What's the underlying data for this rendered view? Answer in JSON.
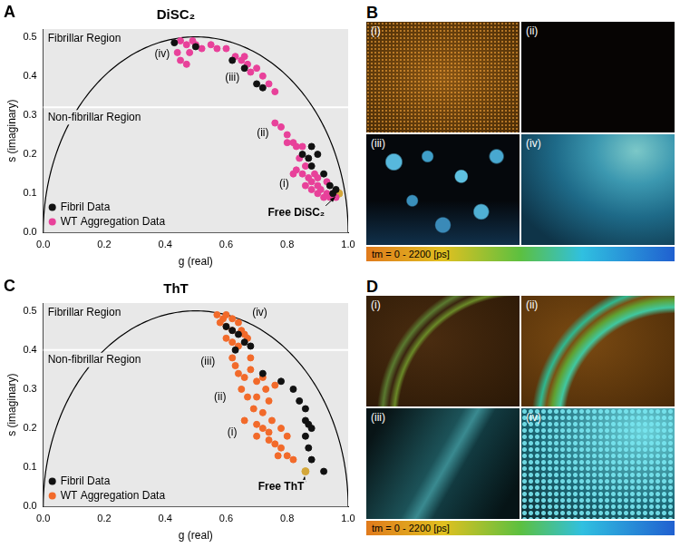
{
  "chart_data": [
    {
      "type": "scatter",
      "panel": "A",
      "title": "DiSC₂",
      "x_label": "g (real)",
      "y_label": "s (imaginary)",
      "xlim": [
        0,
        1
      ],
      "xticks": [
        {
          "value": 0,
          "label": "0.0"
        },
        {
          "value": 0.2,
          "label": "0.2"
        },
        {
          "value": 0.4,
          "label": "0.4"
        },
        {
          "value": 0.6,
          "label": "0.6"
        },
        {
          "value": 0.8,
          "label": "0.8"
        },
        {
          "value": 1,
          "label": "1.0"
        }
      ],
      "ylim": [
        0,
        0.52
      ],
      "yticks": [
        {
          "value": 0,
          "label": "0.0"
        },
        {
          "value": 0.1,
          "label": "0.1"
        },
        {
          "value": 0.2,
          "label": "0.2"
        },
        {
          "value": 0.3,
          "label": "0.3"
        },
        {
          "value": 0.4,
          "label": "0.4"
        },
        {
          "value": 0.5,
          "label": "0.5"
        }
      ],
      "grid": false,
      "legend": "lower left",
      "regions": [
        {
          "label": "Fibrillar Region",
          "from": 0.32,
          "to": 0.52
        },
        {
          "label": "Non-fibrillar Region",
          "from": 0,
          "to": 0.32
        }
      ],
      "series": [
        {
          "name": "Fibril Data",
          "color": "#111111",
          "values": [
            [
              0.43,
              0.485
            ],
            [
              0.5,
              0.475
            ],
            [
              0.62,
              0.44
            ],
            [
              0.66,
              0.42
            ],
            [
              0.7,
              0.38
            ],
            [
              0.72,
              0.37
            ],
            [
              0.85,
              0.2
            ],
            [
              0.87,
              0.19
            ],
            [
              0.88,
              0.17
            ],
            [
              0.88,
              0.22
            ],
            [
              0.9,
              0.2
            ],
            [
              0.92,
              0.15
            ],
            [
              0.94,
              0.12
            ],
            [
              0.95,
              0.1
            ],
            [
              0.96,
              0.11
            ]
          ]
        },
        {
          "name": "WT Aggregation Data",
          "color": "#e8419a",
          "values": [
            [
              0.45,
              0.49
            ],
            [
              0.47,
              0.48
            ],
            [
              0.48,
              0.46
            ],
            [
              0.49,
              0.49
            ],
            [
              0.5,
              0.48
            ],
            [
              0.52,
              0.47
            ],
            [
              0.44,
              0.46
            ],
            [
              0.45,
              0.44
            ],
            [
              0.47,
              0.43
            ],
            [
              0.55,
              0.48
            ],
            [
              0.57,
              0.47
            ],
            [
              0.6,
              0.47
            ],
            [
              0.63,
              0.45
            ],
            [
              0.65,
              0.44
            ],
            [
              0.67,
              0.43
            ],
            [
              0.68,
              0.41
            ],
            [
              0.7,
              0.42
            ],
            [
              0.72,
              0.4
            ],
            [
              0.74,
              0.38
            ],
            [
              0.76,
              0.36
            ],
            [
              0.66,
              0.45
            ],
            [
              0.76,
              0.28
            ],
            [
              0.78,
              0.27
            ],
            [
              0.8,
              0.25
            ],
            [
              0.8,
              0.23
            ],
            [
              0.82,
              0.23
            ],
            [
              0.83,
              0.22
            ],
            [
              0.85,
              0.22
            ],
            [
              0.84,
              0.19
            ],
            [
              0.86,
              0.17
            ],
            [
              0.83,
              0.16
            ],
            [
              0.85,
              0.15
            ],
            [
              0.87,
              0.14
            ],
            [
              0.88,
              0.13
            ],
            [
              0.9,
              0.12
            ],
            [
              0.88,
              0.11
            ],
            [
              0.9,
              0.1
            ],
            [
              0.91,
              0.11
            ],
            [
              0.92,
              0.09
            ],
            [
              0.93,
              0.1
            ],
            [
              0.94,
              0.09
            ],
            [
              0.95,
              0.1
            ],
            [
              0.96,
              0.09
            ],
            [
              0.89,
              0.15
            ],
            [
              0.86,
              0.12
            ],
            [
              0.9,
              0.14
            ],
            [
              0.93,
              0.13
            ],
            [
              0.82,
              0.15
            ]
          ]
        }
      ],
      "annotations": [
        {
          "text": "(i)",
          "x": 0.79,
          "y": 0.125
        },
        {
          "text": "(ii)",
          "x": 0.72,
          "y": 0.255
        },
        {
          "text": "(iii)",
          "x": 0.62,
          "y": 0.395
        },
        {
          "text": "(iv)",
          "x": 0.39,
          "y": 0.455
        },
        {
          "text": "Free DiSC₂",
          "x": 0.83,
          "y": 0.05,
          "point": [
            0.97,
            0.1
          ],
          "color": "#d4a73a"
        }
      ]
    },
    {
      "type": "scatter",
      "panel": "C",
      "title": "ThT",
      "x_label": "g (real)",
      "y_label": "s (imaginary)",
      "xlim": [
        0,
        1
      ],
      "xticks": [
        {
          "value": 0,
          "label": "0.0"
        },
        {
          "value": 0.2,
          "label": "0.2"
        },
        {
          "value": 0.4,
          "label": "0.4"
        },
        {
          "value": 0.6,
          "label": "0.6"
        },
        {
          "value": 0.8,
          "label": "0.8"
        },
        {
          "value": 1,
          "label": "1.0"
        }
      ],
      "ylim": [
        0,
        0.52
      ],
      "yticks": [
        {
          "value": 0,
          "label": "0.0"
        },
        {
          "value": 0.1,
          "label": "0.1"
        },
        {
          "value": 0.2,
          "label": "0.2"
        },
        {
          "value": 0.3,
          "label": "0.3"
        },
        {
          "value": 0.4,
          "label": "0.4"
        },
        {
          "value": 0.5,
          "label": "0.5"
        }
      ],
      "grid": false,
      "legend": "lower left",
      "regions": [
        {
          "label": "Fibrillar Region",
          "from": 0.4,
          "to": 0.52
        },
        {
          "label": "Non-fibrillar Region",
          "from": 0,
          "to": 0.4
        }
      ],
      "series": [
        {
          "name": "Fibril Data",
          "color": "#111111",
          "values": [
            [
              0.6,
              0.46
            ],
            [
              0.62,
              0.45
            ],
            [
              0.64,
              0.44
            ],
            [
              0.66,
              0.42
            ],
            [
              0.63,
              0.4
            ],
            [
              0.68,
              0.41
            ],
            [
              0.72,
              0.34
            ],
            [
              0.78,
              0.32
            ],
            [
              0.82,
              0.3
            ],
            [
              0.84,
              0.27
            ],
            [
              0.86,
              0.25
            ],
            [
              0.86,
              0.22
            ],
            [
              0.87,
              0.21
            ],
            [
              0.88,
              0.2
            ],
            [
              0.86,
              0.18
            ],
            [
              0.87,
              0.15
            ],
            [
              0.88,
              0.12
            ],
            [
              0.92,
              0.09
            ]
          ]
        },
        {
          "name": "WT Aggregation Data",
          "color": "#f26a2a",
          "values": [
            [
              0.57,
              0.49
            ],
            [
              0.59,
              0.48
            ],
            [
              0.6,
              0.49
            ],
            [
              0.62,
              0.48
            ],
            [
              0.64,
              0.47
            ],
            [
              0.58,
              0.47
            ],
            [
              0.6,
              0.46
            ],
            [
              0.62,
              0.45
            ],
            [
              0.65,
              0.45
            ],
            [
              0.66,
              0.44
            ],
            [
              0.67,
              0.43
            ],
            [
              0.6,
              0.43
            ],
            [
              0.62,
              0.42
            ],
            [
              0.64,
              0.41
            ],
            [
              0.62,
              0.38
            ],
            [
              0.63,
              0.36
            ],
            [
              0.64,
              0.34
            ],
            [
              0.66,
              0.33
            ],
            [
              0.68,
              0.35
            ],
            [
              0.7,
              0.32
            ],
            [
              0.72,
              0.33
            ],
            [
              0.73,
              0.3
            ],
            [
              0.65,
              0.3
            ],
            [
              0.67,
              0.28
            ],
            [
              0.7,
              0.28
            ],
            [
              0.74,
              0.27
            ],
            [
              0.69,
              0.25
            ],
            [
              0.72,
              0.24
            ],
            [
              0.66,
              0.22
            ],
            [
              0.7,
              0.21
            ],
            [
              0.72,
              0.2
            ],
            [
              0.74,
              0.19
            ],
            [
              0.7,
              0.18
            ],
            [
              0.74,
              0.17
            ],
            [
              0.76,
              0.16
            ],
            [
              0.78,
              0.15
            ],
            [
              0.77,
              0.13
            ],
            [
              0.8,
              0.13
            ],
            [
              0.82,
              0.12
            ],
            [
              0.75,
              0.22
            ],
            [
              0.78,
              0.2
            ],
            [
              0.8,
              0.18
            ],
            [
              0.68,
              0.38
            ],
            [
              0.76,
              0.31
            ]
          ]
        }
      ],
      "annotations": [
        {
          "text": "(i)",
          "x": 0.62,
          "y": 0.19
        },
        {
          "text": "(ii)",
          "x": 0.58,
          "y": 0.28
        },
        {
          "text": "(iii)",
          "x": 0.54,
          "y": 0.37
        },
        {
          "text": "(iv)",
          "x": 0.71,
          "y": 0.495
        },
        {
          "text": "Free ThT",
          "x": 0.78,
          "y": 0.05,
          "point": [
            0.86,
            0.09
          ],
          "color": "#d4a73a"
        }
      ]
    }
  ],
  "image_panels": [
    {
      "panel": "B",
      "images": [
        "(i)",
        "(ii)",
        "(iii)",
        "(iv)"
      ],
      "colorbar": "tm = 0 - 2200 [ps]"
    },
    {
      "panel": "D",
      "images": [
        "(i)",
        "(ii)",
        "(iii)",
        "(iv)"
      ],
      "colorbar": "tm = 0 - 2200 [ps]"
    }
  ]
}
